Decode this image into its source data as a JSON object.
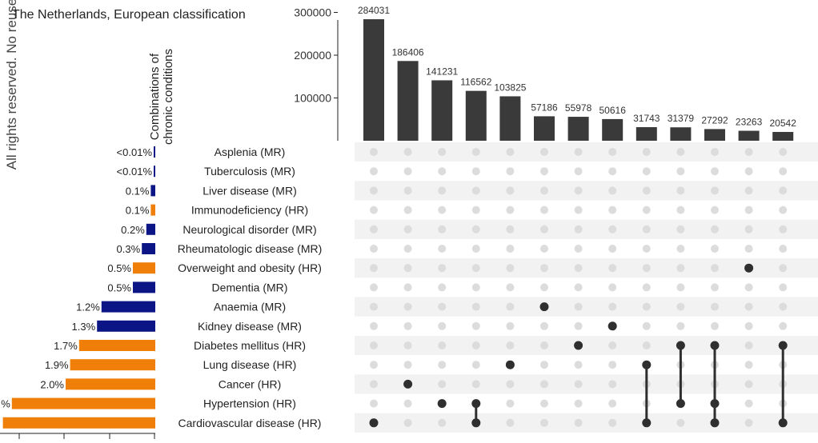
{
  "watermark": "All rights reserved. No reuse",
  "title": "The Netherlands, European classification",
  "set_size_title_lines": [
    "Combinations of",
    "chronic conditions"
  ],
  "colors": {
    "bar": "#3a3a3a",
    "dot_on": "#2f2f2f",
    "dot_off": "#dcdcdc",
    "row_stripe": "#f2f2f2",
    "hr": "#f07f09",
    "mr": "#0b1585"
  },
  "chart_data": {
    "type": "bar",
    "subtype": "upset",
    "title": "The Netherlands, European classification",
    "ylim": [
      0,
      300000
    ],
    "yticks": [
      100000,
      200000,
      300000
    ],
    "intersection_sizes": [
      284031,
      186406,
      141231,
      116562,
      103825,
      57186,
      55978,
      50616,
      31743,
      31379,
      27292,
      23263,
      20542
    ],
    "conditions": [
      {
        "label": "Asplenia (MR)",
        "pct_label": "<0.01%",
        "value": 0.01,
        "group": "MR"
      },
      {
        "label": "Tuberculosis (MR)",
        "pct_label": "<0.01%",
        "value": 0.01,
        "group": "MR"
      },
      {
        "label": "Liver disease (MR)",
        "pct_label": "0.1%",
        "value": 0.1,
        "group": "MR"
      },
      {
        "label": "Immunodeficiency (HR)",
        "pct_label": "0.1%",
        "value": 0.1,
        "group": "HR"
      },
      {
        "label": "Neurological disorder (MR)",
        "pct_label": "0.2%",
        "value": 0.2,
        "group": "MR"
      },
      {
        "label": "Rheumatologic disease (MR)",
        "pct_label": "0.3%",
        "value": 0.3,
        "group": "MR"
      },
      {
        "label": "Overweight and obesity (HR)",
        "pct_label": "0.5%",
        "value": 0.5,
        "group": "HR"
      },
      {
        "label": "Dementia (MR)",
        "pct_label": "0.5%",
        "value": 0.5,
        "group": "MR"
      },
      {
        "label": "Anaemia (MR)",
        "pct_label": "1.2%",
        "value": 1.2,
        "group": "MR"
      },
      {
        "label": "Kidney disease (MR)",
        "pct_label": "1.3%",
        "value": 1.3,
        "group": "MR"
      },
      {
        "label": "Diabetes mellitus  (HR)",
        "pct_label": "1.7%",
        "value": 1.7,
        "group": "HR"
      },
      {
        "label": "Lung disease (HR)",
        "pct_label": "1.9%",
        "value": 1.9,
        "group": "HR"
      },
      {
        "label": "Cancer (HR)",
        "pct_label": "2.0%",
        "value": 2.0,
        "group": "HR"
      },
      {
        "label": "Hypertension (HR)",
        "pct_label": "%",
        "value": 3.2,
        "group": "HR"
      },
      {
        "label": "Cardiovascular disease (HR)",
        "pct_label": "",
        "value": 3.4,
        "group": "HR"
      }
    ],
    "combinations": [
      [
        "Cardiovascular disease (HR)"
      ],
      [
        "Cancer (HR)"
      ],
      [
        "Hypertension (HR)"
      ],
      [
        "Hypertension (HR)",
        "Cardiovascular disease (HR)"
      ],
      [
        "Lung disease (HR)"
      ],
      [
        "Anaemia (MR)"
      ],
      [
        "Diabetes mellitus  (HR)"
      ],
      [
        "Kidney disease (MR)"
      ],
      [
        "Lung disease (HR)",
        "Cardiovascular disease (HR)"
      ],
      [
        "Diabetes mellitus  (HR)",
        "Hypertension (HR)"
      ],
      [
        "Diabetes mellitus  (HR)",
        "Hypertension (HR)",
        "Cardiovascular disease (HR)"
      ],
      [
        "Overweight and obesity (HR)"
      ],
      [
        "Diabetes mellitus  (HR)",
        "Cardiovascular disease (HR)"
      ]
    ]
  }
}
